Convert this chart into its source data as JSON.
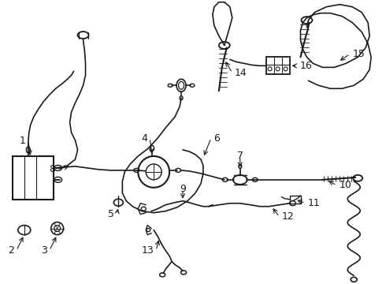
{
  "background_color": "#ffffff",
  "line_color": "#1a1a1a",
  "label_color": "#1a1a1a",
  "fig_width": 4.9,
  "fig_height": 3.6,
  "dpi": 100
}
